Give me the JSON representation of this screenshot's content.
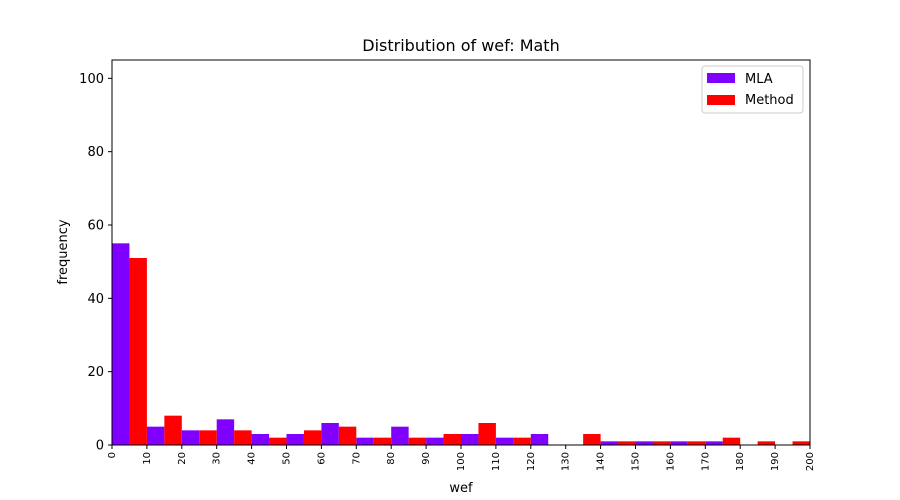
{
  "chart_data": {
    "type": "bar",
    "title": "Distribution of wef: Math",
    "xlabel": "wef",
    "ylabel": "frequency",
    "xlim": [
      0,
      200
    ],
    "ylim": [
      0,
      105
    ],
    "x_ticks": [
      0,
      10,
      20,
      30,
      40,
      50,
      60,
      70,
      80,
      90,
      100,
      110,
      120,
      130,
      140,
      150,
      160,
      170,
      180,
      190,
      200
    ],
    "y_ticks": [
      0,
      20,
      40,
      60,
      80,
      100
    ],
    "bin_edges": [
      0,
      10,
      20,
      30,
      40,
      50,
      60,
      70,
      80,
      90,
      100,
      110,
      120,
      130,
      140,
      150,
      160,
      170,
      180,
      190,
      200
    ],
    "legend_position": "top-right",
    "grid": false,
    "series": [
      {
        "name": "MLA",
        "color": "#7f00ff",
        "values": [
          55,
          5,
          4,
          7,
          3,
          3,
          6,
          2,
          5,
          2,
          3,
          2,
          3,
          0,
          1,
          1,
          1,
          1,
          0,
          0
        ]
      },
      {
        "name": "Method",
        "color": "#ff0000",
        "values": [
          51,
          8,
          4,
          4,
          2,
          4,
          5,
          2,
          2,
          3,
          6,
          2,
          0,
          3,
          1,
          1,
          1,
          2,
          1,
          1
        ]
      }
    ]
  }
}
